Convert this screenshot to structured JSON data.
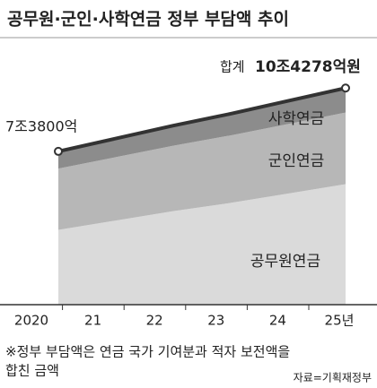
{
  "chart_data": {
    "type": "stacked-area",
    "title": "공무원·군인·사학연금 정부 부담액 추이",
    "categories": [
      "2020",
      "21",
      "22",
      "23",
      "24",
      "25년"
    ],
    "series": [
      {
        "name": "공무원연금",
        "color": "#dadada",
        "values": [
          36000,
          40500,
          45000,
          49000,
          53500,
          58000
        ]
      },
      {
        "name": "군인연금",
        "color": "#b7b7b7",
        "values": [
          29500,
          30500,
          31500,
          32500,
          33500,
          34500
        ]
      },
      {
        "name": "사학연금",
        "color": "#8c8c8c",
        "values": [
          8300,
          9000,
          9700,
          10400,
          11100,
          11778
        ]
      }
    ],
    "line_color": "#333333",
    "ylim": [
      0,
      110000
    ],
    "annotations": {
      "start": "7조3800억",
      "end_prefix": "합계",
      "end": "10조4278억원"
    },
    "note": [
      "※정부 부담액은 연금 국가 기여분과 적자 보전액을",
      "합친 금액"
    ],
    "source": "자료=기획재정부"
  }
}
